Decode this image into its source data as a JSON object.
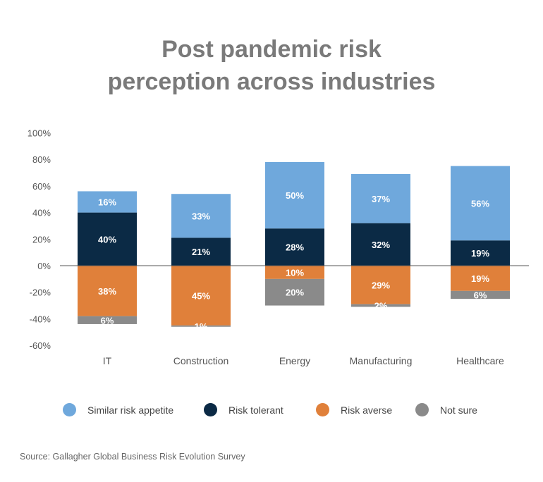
{
  "title_lines": [
    "Post pandemic risk",
    "perception across industries"
  ],
  "source": "Source: Gallagher Global Business Risk Evolution Survey",
  "colors": {
    "similar": "#6fa8dc",
    "tolerant": "#0b2a45",
    "averse": "#e0803a",
    "not_sure": "#8a8a8a",
    "axis": "#555555",
    "grid_label": "#555555"
  },
  "legend": [
    {
      "key": "similar",
      "label": "Similar risk appetite",
      "icon": "circle"
    },
    {
      "key": "tolerant",
      "label": "Risk tolerant",
      "icon": "circle"
    },
    {
      "key": "averse",
      "label": "Risk averse",
      "icon": "circle"
    },
    {
      "key": "not_sure",
      "label": "Not sure",
      "icon": "circle"
    }
  ],
  "chart_data": {
    "type": "bar",
    "stacked": true,
    "diverging": true,
    "categories": [
      "IT",
      "Construction",
      "Energy",
      "Manufacturing",
      "Healthcare"
    ],
    "series": [
      {
        "name": "Risk tolerant",
        "key": "tolerant",
        "direction": "positive",
        "values": [
          40,
          21,
          28,
          32,
          19
        ],
        "labels": [
          "40%",
          "21%",
          "28%",
          "32%",
          "19%"
        ]
      },
      {
        "name": "Similar risk appetite",
        "key": "similar",
        "direction": "positive",
        "values": [
          16,
          33,
          50,
          37,
          56
        ],
        "labels": [
          "16%",
          "33%",
          "50%",
          "37%",
          "56%"
        ]
      },
      {
        "name": "Risk averse",
        "key": "averse",
        "direction": "negative",
        "values": [
          38,
          45,
          10,
          29,
          19
        ],
        "labels": [
          "38%",
          "45%",
          "10%",
          "29%",
          "19%"
        ]
      },
      {
        "name": "Not sure",
        "key": "not_sure",
        "direction": "negative",
        "values": [
          6,
          1,
          20,
          2,
          6
        ],
        "labels": [
          "6%",
          "1%",
          "20%",
          "2%",
          "6%"
        ]
      }
    ],
    "y_ticks": [
      "100%",
      "80%",
      "60%",
      "40%",
      "20%",
      "0%",
      "-20%",
      "-40%",
      "-60%"
    ],
    "ylim": [
      -60,
      100
    ],
    "grid": false,
    "legend_position": "bottom"
  }
}
